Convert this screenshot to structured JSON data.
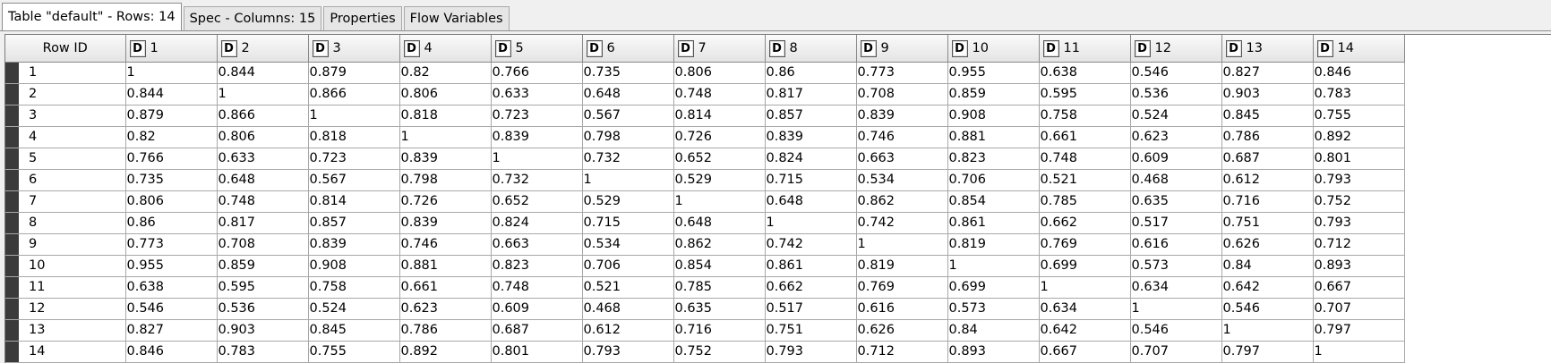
{
  "tabs": [
    {
      "label": "Table \"default\" - Rows: 14",
      "active": true
    },
    {
      "label": "Spec - Columns: 15",
      "active": false
    },
    {
      "label": "Properties",
      "active": false
    },
    {
      "label": "Flow Variables",
      "active": false
    }
  ],
  "table": {
    "rowid_header": "Row ID",
    "type_icon_label": "D",
    "columns": [
      "1",
      "2",
      "3",
      "4",
      "5",
      "6",
      "7",
      "8",
      "9",
      "10",
      "11",
      "12",
      "13",
      "14"
    ],
    "rows": [
      {
        "id": "1",
        "cells": [
          "1",
          "0.844",
          "0.879",
          "0.82",
          "0.766",
          "0.735",
          "0.806",
          "0.86",
          "0.773",
          "0.955",
          "0.638",
          "0.546",
          "0.827",
          "0.846"
        ]
      },
      {
        "id": "2",
        "cells": [
          "0.844",
          "1",
          "0.866",
          "0.806",
          "0.633",
          "0.648",
          "0.748",
          "0.817",
          "0.708",
          "0.859",
          "0.595",
          "0.536",
          "0.903",
          "0.783"
        ]
      },
      {
        "id": "3",
        "cells": [
          "0.879",
          "0.866",
          "1",
          "0.818",
          "0.723",
          "0.567",
          "0.814",
          "0.857",
          "0.839",
          "0.908",
          "0.758",
          "0.524",
          "0.845",
          "0.755"
        ]
      },
      {
        "id": "4",
        "cells": [
          "0.82",
          "0.806",
          "0.818",
          "1",
          "0.839",
          "0.798",
          "0.726",
          "0.839",
          "0.746",
          "0.881",
          "0.661",
          "0.623",
          "0.786",
          "0.892"
        ]
      },
      {
        "id": "5",
        "cells": [
          "0.766",
          "0.633",
          "0.723",
          "0.839",
          "1",
          "0.732",
          "0.652",
          "0.824",
          "0.663",
          "0.823",
          "0.748",
          "0.609",
          "0.687",
          "0.801"
        ]
      },
      {
        "id": "6",
        "cells": [
          "0.735",
          "0.648",
          "0.567",
          "0.798",
          "0.732",
          "1",
          "0.529",
          "0.715",
          "0.534",
          "0.706",
          "0.521",
          "0.468",
          "0.612",
          "0.793"
        ]
      },
      {
        "id": "7",
        "cells": [
          "0.806",
          "0.748",
          "0.814",
          "0.726",
          "0.652",
          "0.529",
          "1",
          "0.648",
          "0.862",
          "0.854",
          "0.785",
          "0.635",
          "0.716",
          "0.752"
        ]
      },
      {
        "id": "8",
        "cells": [
          "0.86",
          "0.817",
          "0.857",
          "0.839",
          "0.824",
          "0.715",
          "0.648",
          "1",
          "0.742",
          "0.861",
          "0.662",
          "0.517",
          "0.751",
          "0.793"
        ]
      },
      {
        "id": "9",
        "cells": [
          "0.773",
          "0.708",
          "0.839",
          "0.746",
          "0.663",
          "0.534",
          "0.862",
          "0.742",
          "1",
          "0.819",
          "0.769",
          "0.616",
          "0.626",
          "0.712"
        ]
      },
      {
        "id": "10",
        "cells": [
          "0.955",
          "0.859",
          "0.908",
          "0.881",
          "0.823",
          "0.706",
          "0.854",
          "0.861",
          "0.819",
          "1",
          "0.699",
          "0.573",
          "0.84",
          "0.893"
        ]
      },
      {
        "id": "11",
        "cells": [
          "0.638",
          "0.595",
          "0.758",
          "0.661",
          "0.748",
          "0.521",
          "0.785",
          "0.662",
          "0.769",
          "0.699",
          "1",
          "0.634",
          "0.642",
          "0.667"
        ]
      },
      {
        "id": "12",
        "cells": [
          "0.546",
          "0.536",
          "0.524",
          "0.623",
          "0.609",
          "0.468",
          "0.635",
          "0.517",
          "0.616",
          "0.573",
          "0.634",
          "1",
          "0.546",
          "0.707"
        ]
      },
      {
        "id": "13",
        "cells": [
          "0.827",
          "0.903",
          "0.845",
          "0.786",
          "0.687",
          "0.612",
          "0.716",
          "0.751",
          "0.626",
          "0.84",
          "0.642",
          "0.546",
          "1",
          "0.797"
        ]
      },
      {
        "id": "14",
        "cells": [
          "0.846",
          "0.783",
          "0.755",
          "0.892",
          "0.801",
          "0.793",
          "0.752",
          "0.793",
          "0.712",
          "0.893",
          "0.667",
          "0.707",
          "0.797",
          "1"
        ]
      }
    ]
  }
}
